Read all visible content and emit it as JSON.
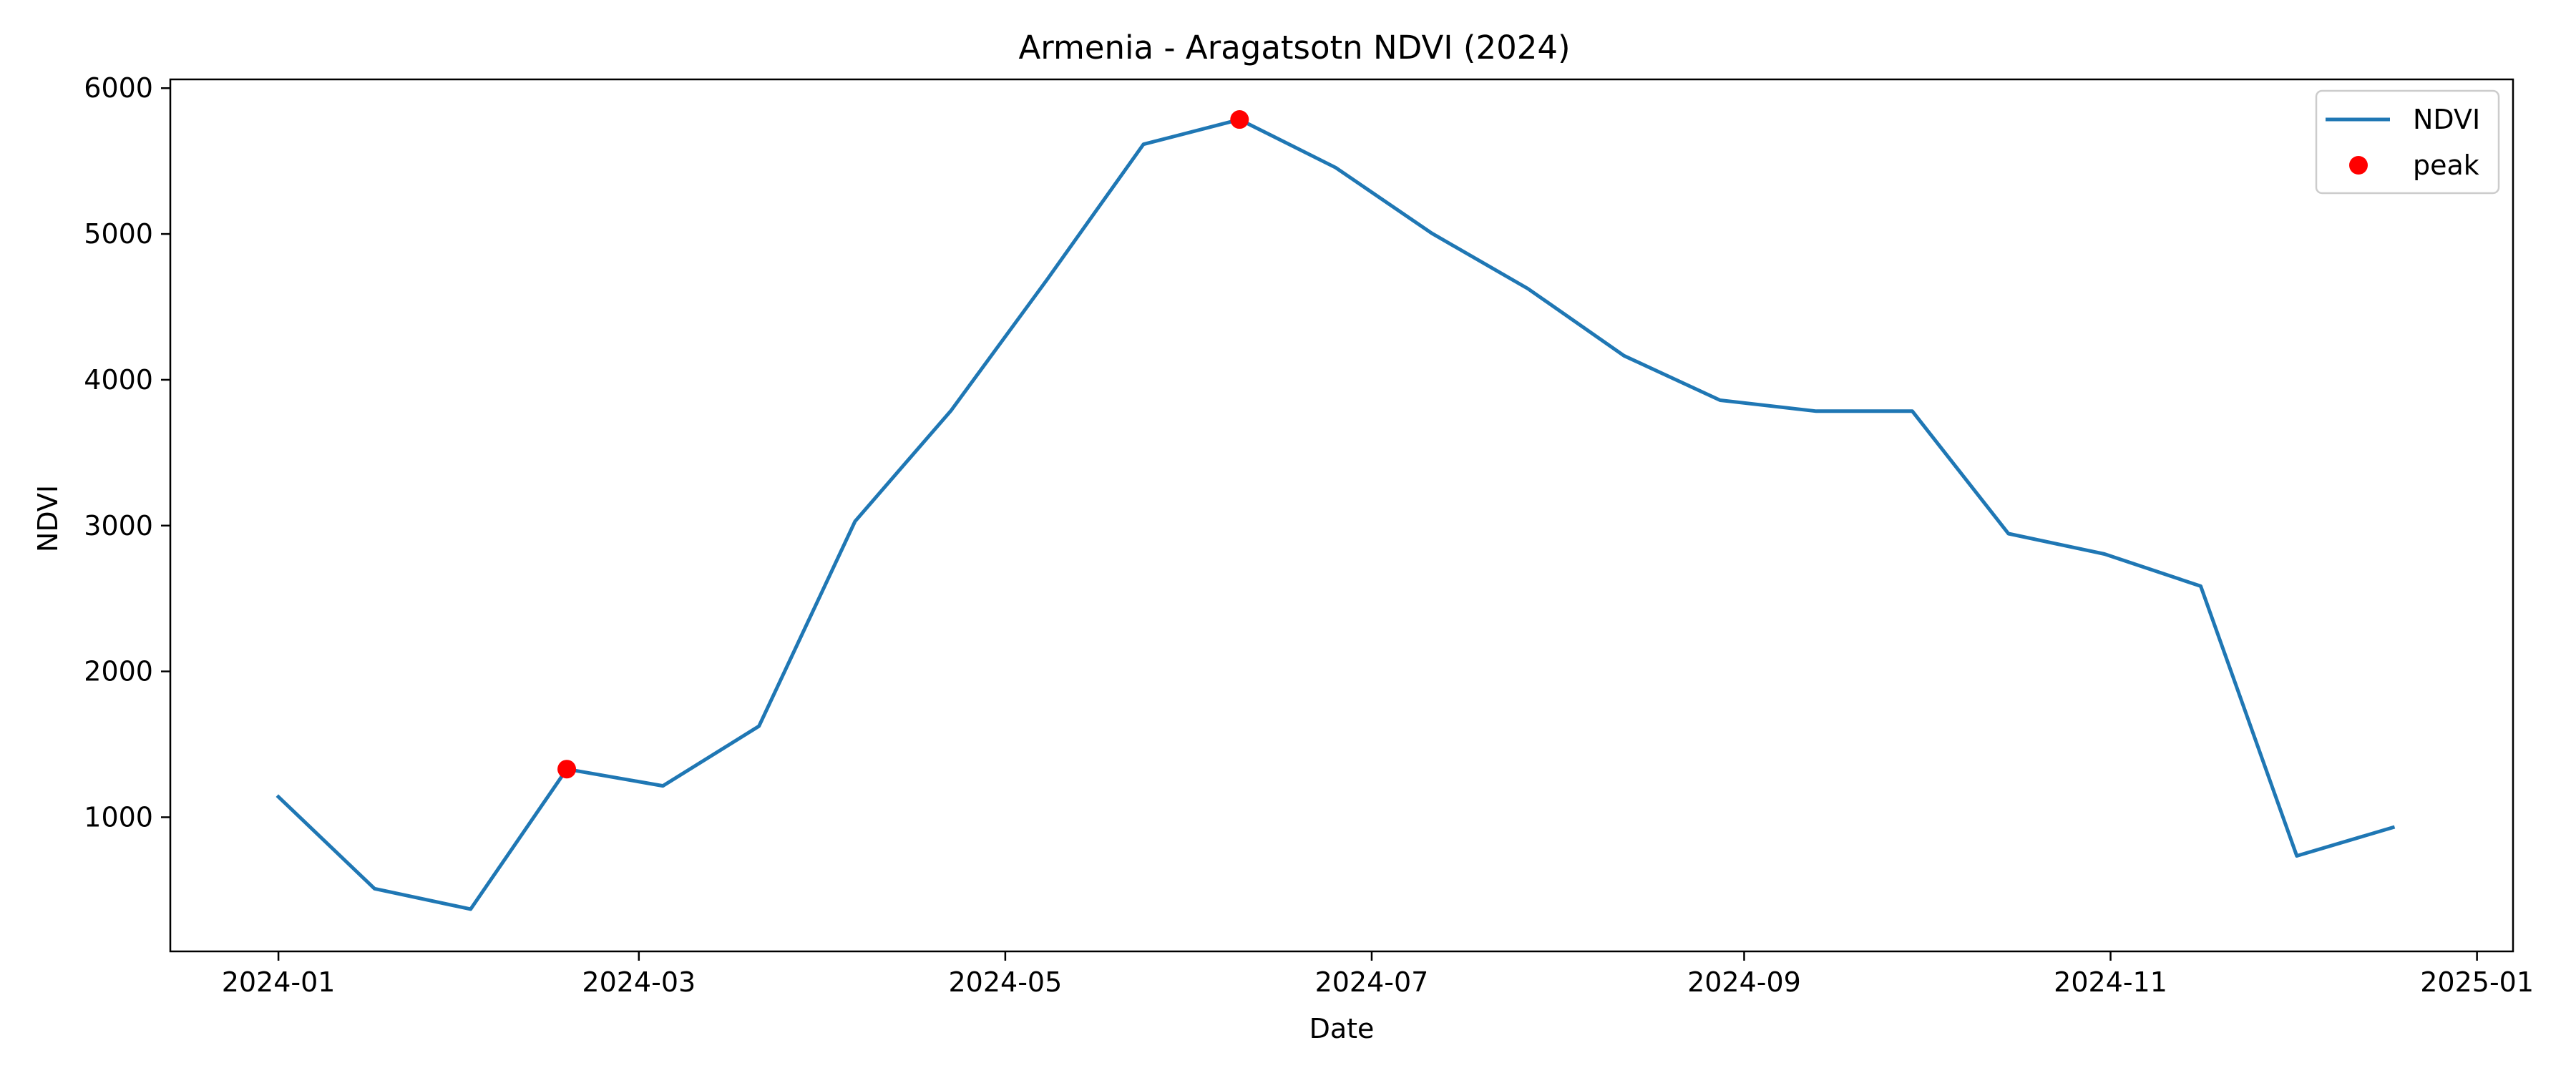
{
  "chart_data": {
    "type": "line",
    "title": "Armenia - Aragatsotn NDVI (2024)",
    "xlabel": "Date",
    "ylabel": "NDVI",
    "x_ticks": [
      "2024-01",
      "2024-03",
      "2024-05",
      "2024-07",
      "2024-09",
      "2024-11",
      "2025-01"
    ],
    "y_ticks": [
      "1000",
      "2000",
      "3000",
      "4000",
      "5000",
      "6000"
    ],
    "xlim": [
      "2023-12-14",
      "2025-01-07"
    ],
    "ylim": [
      80,
      6060
    ],
    "grid": false,
    "legend_position": "top-right",
    "series": [
      {
        "name": "NDVI",
        "color": "#1f77b4",
        "x": [
          "2024-01-01",
          "2024-01-17",
          "2024-02-02",
          "2024-02-18",
          "2024-03-05",
          "2024-03-21",
          "2024-04-06",
          "2024-04-22",
          "2024-05-08",
          "2024-05-24",
          "2024-06-09",
          "2024-06-25",
          "2024-07-11",
          "2024-07-27",
          "2024-08-12",
          "2024-08-28",
          "2024-09-13",
          "2024-09-29",
          "2024-10-15",
          "2024-10-31",
          "2024-11-16",
          "2024-12-02",
          "2024-12-18"
        ],
        "values": [
          1140,
          510,
          370,
          1330,
          1215,
          1625,
          3030,
          3790,
          4690,
          5615,
          5785,
          5455,
          5005,
          4625,
          4165,
          3860,
          3785,
          3785,
          2945,
          2805,
          2585,
          735,
          930
        ]
      },
      {
        "name": "peak",
        "color": "#ff0000",
        "marker": "circle",
        "x": [
          "2024-02-18",
          "2024-06-09"
        ],
        "values": [
          1330,
          5785
        ]
      }
    ]
  }
}
